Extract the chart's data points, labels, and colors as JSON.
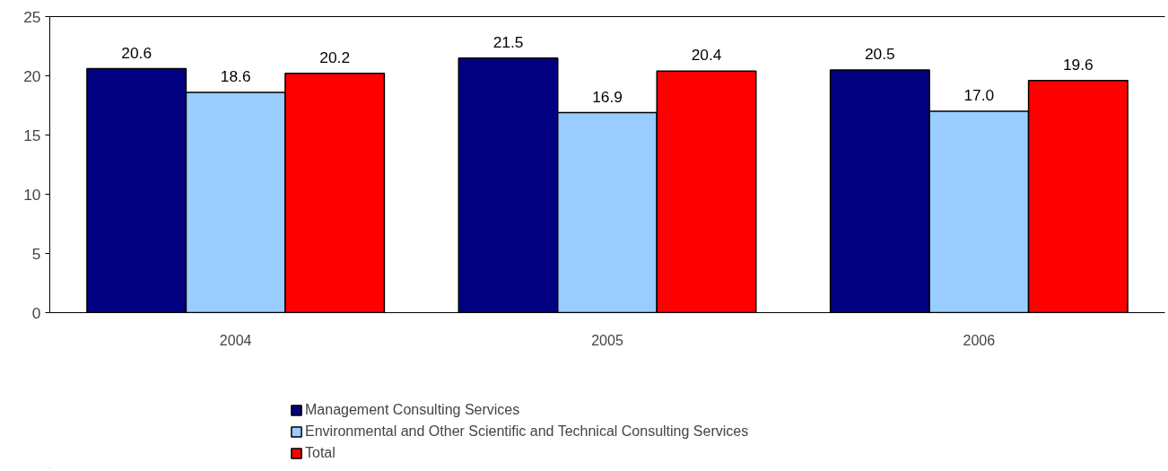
{
  "chart_data": {
    "type": "bar",
    "categories": [
      "2004",
      "2005",
      "2006"
    ],
    "series": [
      {
        "name": "Management Consulting Services",
        "color": "#000080",
        "values": [
          20.6,
          21.5,
          20.5
        ],
        "value_labels": [
          "20.6",
          "21.5",
          "20.5"
        ]
      },
      {
        "name": "Environmental and Other Scientific and Technical Consulting Services",
        "color": "#99ccff",
        "values": [
          18.6,
          16.9,
          17.0
        ],
        "value_labels": [
          "18.6",
          "16.9",
          "17.0"
        ]
      },
      {
        "name": "Total",
        "color": "#ff0000",
        "values": [
          20.2,
          20.4,
          19.6
        ],
        "value_labels": [
          "20.2",
          "20.4",
          "19.6"
        ]
      }
    ],
    "ylim": [
      0,
      25
    ],
    "yticks": [
      0,
      5,
      10,
      15,
      20,
      25
    ],
    "grid": false,
    "legend": "bottom"
  }
}
